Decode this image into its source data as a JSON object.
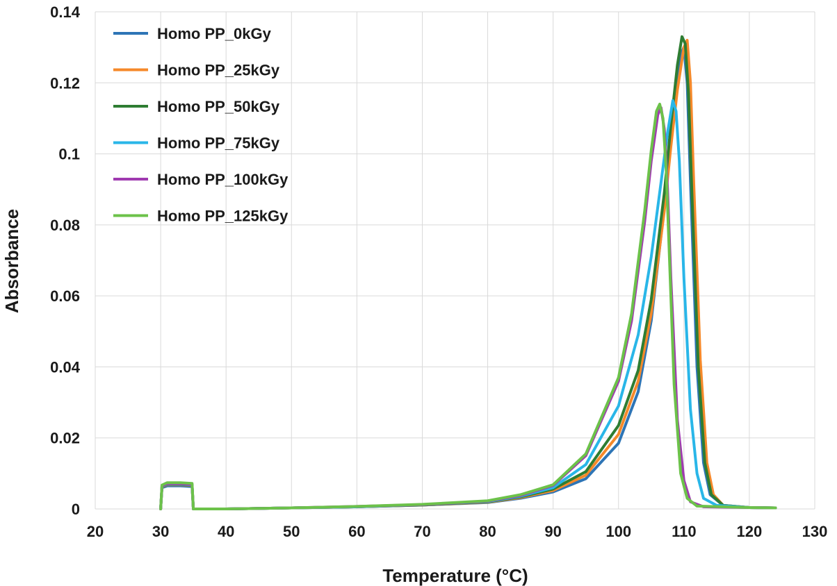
{
  "chart_data": {
    "type": "line",
    "title": "",
    "xlabel": "Temperature (°C)",
    "ylabel": "Absorbance",
    "xlim": [
      20,
      130
    ],
    "ylim": [
      0,
      0.14
    ],
    "xticks": [
      "20",
      "30",
      "40",
      "50",
      "60",
      "70",
      "80",
      "90",
      "100",
      "110",
      "120",
      "130"
    ],
    "yticks": [
      "0",
      "0.02",
      "0.04",
      "0.06",
      "0.08",
      "0.1",
      "0.12",
      "0.14"
    ],
    "grid": true,
    "legend_position": "top-left",
    "series": [
      {
        "name": "Homo PP_0kGy",
        "color": "#2e75b6",
        "x": [
          30,
          30.2,
          31,
          33,
          34.8,
          35,
          40,
          50,
          60,
          70,
          80,
          85,
          90,
          95,
          100,
          103,
          105,
          107,
          108,
          109,
          109.5,
          110,
          110.5,
          111,
          112,
          113,
          114,
          116,
          120,
          124
        ],
        "y": [
          0,
          0.006,
          0.0065,
          0.0065,
          0.0063,
          0,
          0,
          0.0003,
          0.0006,
          0.0011,
          0.0018,
          0.003,
          0.0048,
          0.0085,
          0.0185,
          0.033,
          0.053,
          0.085,
          0.105,
          0.122,
          0.128,
          0.13,
          0.12,
          0.092,
          0.04,
          0.013,
          0.004,
          0.001,
          0.0004,
          0.0003
        ]
      },
      {
        "name": "Homo PP_25kGy",
        "color": "#f5892a",
        "x": [
          30,
          30.2,
          31,
          33,
          34.8,
          35,
          40,
          50,
          60,
          70,
          80,
          85,
          90,
          95,
          100,
          103,
          105,
          107,
          108,
          109,
          110,
          110.5,
          111,
          111.5,
          112.5,
          113.5,
          114.5,
          116,
          120,
          124
        ],
        "y": [
          0,
          0.0062,
          0.0068,
          0.0068,
          0.0066,
          0,
          0,
          0.0003,
          0.0006,
          0.0011,
          0.0019,
          0.0032,
          0.0052,
          0.0095,
          0.021,
          0.036,
          0.055,
          0.084,
          0.102,
          0.118,
          0.13,
          0.132,
          0.12,
          0.092,
          0.042,
          0.013,
          0.004,
          0.001,
          0.0004,
          0.0003
        ]
      },
      {
        "name": "Homo PP_50kGy",
        "color": "#2e7d32",
        "x": [
          30,
          30.2,
          31,
          33,
          34.8,
          35,
          40,
          50,
          60,
          70,
          80,
          85,
          90,
          95,
          100,
          103,
          105,
          107,
          108,
          109,
          109.7,
          110.2,
          110.7,
          111.2,
          112.2,
          113.2,
          114.2,
          116,
          120,
          124
        ],
        "y": [
          0,
          0.0063,
          0.0069,
          0.0069,
          0.0067,
          0,
          0,
          0.0003,
          0.0006,
          0.0011,
          0.002,
          0.0034,
          0.0056,
          0.0105,
          0.0235,
          0.039,
          0.059,
          0.089,
          0.108,
          0.125,
          0.133,
          0.131,
          0.117,
          0.09,
          0.04,
          0.013,
          0.004,
          0.001,
          0.0004,
          0.0003
        ]
      },
      {
        "name": "Homo PP_75kGy",
        "color": "#29b6e8",
        "x": [
          30,
          30.2,
          31,
          33,
          34.8,
          35,
          40,
          50,
          60,
          70,
          80,
          85,
          90,
          95,
          100,
          103,
          105,
          106.5,
          107.5,
          108.3,
          108.8,
          109.3,
          110,
          111,
          112,
          113,
          115,
          120,
          124
        ],
        "y": [
          0,
          0.0064,
          0.007,
          0.007,
          0.0068,
          0,
          0,
          0.0003,
          0.0006,
          0.0012,
          0.0021,
          0.0036,
          0.006,
          0.0125,
          0.029,
          0.049,
          0.071,
          0.092,
          0.106,
          0.115,
          0.112,
          0.098,
          0.065,
          0.028,
          0.01,
          0.003,
          0.001,
          0.0004,
          0.0003
        ]
      },
      {
        "name": "Homo PP_100kGy",
        "color": "#a03ab0",
        "x": [
          30,
          30.2,
          31,
          33,
          34.8,
          35,
          40,
          50,
          60,
          70,
          80,
          85,
          90,
          95,
          100,
          102,
          104,
          105,
          106,
          106.5,
          107,
          107.5,
          108,
          109,
          110,
          111,
          113,
          120,
          124
        ],
        "y": [
          0,
          0.0065,
          0.0071,
          0.0071,
          0.0069,
          0,
          0,
          0.0003,
          0.0007,
          0.0012,
          0.0022,
          0.0038,
          0.0066,
          0.015,
          0.036,
          0.053,
          0.081,
          0.098,
          0.111,
          0.113,
          0.107,
          0.09,
          0.065,
          0.025,
          0.008,
          0.002,
          0.0006,
          0.0004,
          0.0003
        ]
      },
      {
        "name": "Homo PP_125kGy",
        "color": "#6cc24a",
        "x": [
          30,
          30.2,
          31,
          33,
          34.8,
          35,
          40,
          50,
          60,
          70,
          80,
          85,
          90,
          95,
          100,
          102,
          104,
          105,
          105.8,
          106.3,
          106.8,
          107.3,
          107.8,
          108.5,
          109.5,
          110.5,
          112,
          120,
          124
        ],
        "y": [
          0,
          0.0067,
          0.0074,
          0.0074,
          0.0072,
          0,
          0,
          0.0003,
          0.0007,
          0.0013,
          0.0023,
          0.004,
          0.0068,
          0.0155,
          0.037,
          0.055,
          0.084,
          0.101,
          0.112,
          0.114,
          0.11,
          0.095,
          0.07,
          0.035,
          0.01,
          0.003,
          0.0008,
          0.0004,
          0.0003
        ]
      }
    ]
  }
}
